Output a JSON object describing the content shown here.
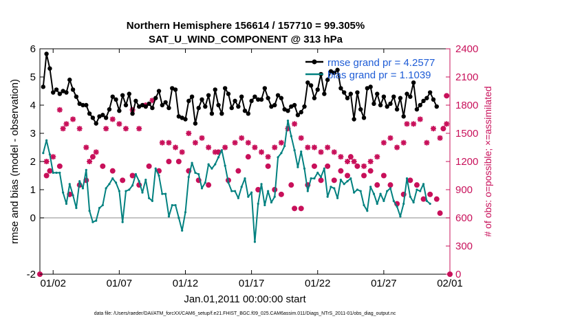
{
  "chart_data": {
    "type": "line",
    "title": "Northern Hemisphere 156614 / 157710 = 99.305%",
    "subtitle": "SAT_U_WIND_COMPONENT @ 313 hPa",
    "xlabel": "Jan.01,2011 00:00:00 start",
    "ylabel": "rmse and bias (model - observation)",
    "ylabel_right": "# of obs: o=possible; ×=assimilated",
    "footer": "data file: /Users/raeder/DAI/ATM_forcXX/CAM6_setup/f.e21.FHIST_BGC.f09_025.CAM6assim.011/Diags_NTrS_2011-01/obs_diag_output.nc",
    "x_ticks": [
      {
        "value": 1.5,
        "label": "01/02"
      },
      {
        "value": 6.5,
        "label": "01/07"
      },
      {
        "value": 11.5,
        "label": "01/12"
      },
      {
        "value": 16.5,
        "label": "01/17"
      },
      {
        "value": 21.5,
        "label": "01/22"
      },
      {
        "value": 26.5,
        "label": "01/27"
      },
      {
        "value": 31.5,
        "label": "02/01"
      }
    ],
    "xlim": [
      0.5,
      31.5
    ],
    "ylim": [
      -2,
      6
    ],
    "yticks": [
      "-2",
      "0",
      "1",
      "2",
      "3",
      "4",
      "5",
      "6"
    ],
    "ylim_right": [
      0,
      2400
    ],
    "yticks_right": [
      "0",
      "300",
      "600",
      "900",
      "1200",
      "1500",
      "1800",
      "2100",
      "2400"
    ],
    "legend": [
      {
        "name": "rmse grand pr = 4.2577",
        "color": "#000000"
      },
      {
        "name": "bias grand pr = 1.1039",
        "color": "#00807f"
      }
    ],
    "series": [
      {
        "name": "rmse",
        "axis": "left",
        "color": "#000000",
        "x_start": 0.75,
        "x_step": 0.25,
        "values": [
          4.65,
          5.82,
          5.3,
          4.45,
          4.55,
          4.4,
          4.5,
          4.45,
          4.9,
          4.55,
          4.3,
          4.05,
          4.0,
          4.0,
          3.7,
          3.55,
          3.35,
          3.6,
          3.65,
          3.55,
          3.85,
          4.3,
          4.2,
          3.8,
          4.35,
          4.0,
          4.4,
          3.7,
          4.15,
          3.95,
          4.0,
          3.95,
          4.05,
          3.9,
          4.25,
          4.5,
          4.0,
          4.1,
          3.9,
          4.6,
          4.55,
          3.6,
          3.55,
          3.5,
          4.15,
          4.3,
          3.35,
          3.9,
          4.2,
          3.95,
          4.35,
          3.7,
          4.55,
          4.0,
          3.7,
          4.6,
          4.4,
          3.9,
          4.15,
          3.95,
          4.3,
          3.8,
          3.7,
          4.15,
          4.3,
          4.2,
          4.2,
          4.6,
          4.25,
          3.95,
          4.0,
          4.35,
          4.25,
          3.85,
          3.8,
          3.95,
          4.0,
          3.65,
          3.75,
          3.95,
          4.8,
          4.7,
          4.25,
          4.55,
          5.1,
          4.4,
          4.9,
          5.2,
          5.15,
          5.25,
          4.6,
          4.45,
          4.25,
          4.4,
          3.5,
          4.45,
          3.85,
          3.55,
          4.6,
          4.65,
          4.05,
          4.4,
          4.0,
          4.3,
          3.95,
          4.05,
          4.3,
          3.85,
          4.25,
          3.6,
          4.4,
          4.3,
          4.8,
          3.85,
          4.0,
          4.15,
          4.25,
          4.45,
          4.2,
          3.95
        ]
      },
      {
        "name": "bias",
        "axis": "left",
        "color": "#00807f",
        "x_start": 0.75,
        "x_step": 0.25,
        "values": [
          2.3,
          2.75,
          2.25,
          1.6,
          1.6,
          1.6,
          0.9,
          0.5,
          1.2,
          0.8,
          0.35,
          1.3,
          1.05,
          1.7,
          0.25,
          -0.15,
          -0.1,
          0.35,
          0.45,
          1.05,
          1.2,
          1.4,
          1.25,
          0.95,
          -0.15,
          0.95,
          1.0,
          1.15,
          1.55,
          1.3,
          0.9,
          1.35,
          0.7,
          0.6,
          1.75,
          1.5,
          0.85,
          0.85,
          0.05,
          0.45,
          0.45,
          0.0,
          -0.45,
          0.2,
          1.45,
          1.95,
          1.6,
          1.55,
          1.05,
          1.25,
          1.9,
          1.75,
          1.9,
          2.15,
          2.4,
          1.85,
          1.25,
          0.95,
          0.95,
          0.7,
          1.1,
          1.4,
          0.75,
          0.9,
          -0.85,
          0.5,
          1.2,
          0.45,
          0.95,
          0.55,
          0.75,
          2.15,
          2.3,
          2.55,
          3.45,
          2.9,
          2.4,
          1.8,
          2.35,
          1.75,
          0.95,
          1.4,
          1.4,
          1.6,
          1.45,
          1.75,
          0.75,
          1.1,
          1.05,
          0.7,
          1.35,
          1.2,
          1.3,
          1.4,
          0.9,
          1.0,
          0.95,
          0.45,
          0.25,
          1.1,
          0.85,
          0.5,
          0.85,
          0.6,
          0.95,
          1.05,
          0.6,
          0.4,
          0.05,
          0.5,
          1.4,
          0.75,
          0.55,
          1.0,
          0.95,
          1.2,
          0.6,
          0.5
        ]
      },
      {
        "name": "obs possible",
        "axis": "right",
        "color": "#c8105a",
        "marker": "o",
        "values": [
          [
            0.5,
            0
          ],
          [
            1.0,
            1050
          ],
          [
            1.25,
            1100
          ],
          [
            2.0,
            1150
          ],
          [
            2.75,
            850
          ],
          [
            3.5,
            950
          ],
          [
            4.0,
            1000
          ],
          [
            4.5,
            1250
          ],
          [
            5.25,
            1150
          ],
          [
            6.0,
            1100
          ],
          [
            6.75,
            1000
          ],
          [
            7.5,
            1050
          ],
          [
            8.0,
            950
          ],
          [
            8.75,
            1150
          ],
          [
            9.5,
            1100
          ],
          [
            10.25,
            1200
          ],
          [
            11.0,
            1200
          ],
          [
            11.75,
            1100
          ],
          [
            12.5,
            1000
          ],
          [
            13.25,
            950
          ],
          [
            14.0,
            1300
          ],
          [
            14.75,
            1000
          ],
          [
            15.5,
            1100
          ],
          [
            16.25,
            1250
          ],
          [
            17.0,
            900
          ],
          [
            17.75,
            1150
          ],
          [
            18.25,
            900
          ],
          [
            18.75,
            850
          ],
          [
            19.5,
            950
          ],
          [
            19.75,
            700
          ],
          [
            20.25,
            700
          ],
          [
            20.75,
            950
          ],
          [
            21.25,
            1150
          ],
          [
            21.75,
            1000
          ],
          [
            22.25,
            1150
          ],
          [
            22.75,
            1000
          ],
          [
            23.25,
            1100
          ],
          [
            23.75,
            1050
          ],
          [
            24.0,
            1250
          ],
          [
            24.5,
            1150
          ],
          [
            25.0,
            1050
          ],
          [
            25.5,
            1100
          ],
          [
            26.0,
            950
          ],
          [
            26.5,
            1050
          ],
          [
            27.0,
            950
          ],
          [
            27.5,
            750
          ],
          [
            28.0,
            850
          ],
          [
            28.5,
            1000
          ],
          [
            29.0,
            950
          ],
          [
            29.5,
            800
          ],
          [
            30.0,
            850
          ],
          [
            30.5,
            800
          ],
          [
            30.75,
            650
          ],
          [
            31.0,
            1550
          ],
          [
            31.25,
            1900
          ],
          [
            31.5,
            0
          ]
        ]
      },
      {
        "name": "obs assimilated",
        "axis": "right",
        "color": "#c8105a",
        "marker": "x",
        "values": [
          [
            1.0,
            1200
          ],
          [
            1.5,
            1250
          ],
          [
            2.0,
            1750
          ],
          [
            2.25,
            1550
          ],
          [
            2.5,
            1600
          ],
          [
            3.0,
            1650
          ],
          [
            3.5,
            1550
          ],
          [
            4.0,
            1350
          ],
          [
            4.25,
            1200
          ],
          [
            4.75,
            1300
          ],
          [
            5.5,
            1550
          ],
          [
            6.0,
            1650
          ],
          [
            6.5,
            1600
          ],
          [
            7.0,
            1550
          ],
          [
            7.5,
            1750
          ],
          [
            8.0,
            1550
          ],
          [
            8.5,
            1800
          ],
          [
            9.0,
            1850
          ],
          [
            9.75,
            1400
          ],
          [
            10.25,
            1400
          ],
          [
            10.75,
            1350
          ],
          [
            11.25,
            1300
          ],
          [
            11.75,
            1500
          ],
          [
            12.25,
            1400
          ],
          [
            12.75,
            1450
          ],
          [
            13.25,
            1350
          ],
          [
            13.75,
            1300
          ],
          [
            14.5,
            1350
          ],
          [
            15.25,
            1400
          ],
          [
            15.75,
            1450
          ],
          [
            16.25,
            1400
          ],
          [
            16.75,
            1350
          ],
          [
            17.25,
            1300
          ],
          [
            17.75,
            1250
          ],
          [
            18.25,
            1350
          ],
          [
            18.75,
            1400
          ],
          [
            19.25,
            1550
          ],
          [
            19.75,
            1600
          ],
          [
            20.25,
            1450
          ],
          [
            20.75,
            1350
          ],
          [
            21.25,
            1350
          ],
          [
            21.75,
            1300
          ],
          [
            22.25,
            1350
          ],
          [
            22.75,
            1300
          ],
          [
            23.25,
            1250
          ],
          [
            23.75,
            1200
          ],
          [
            24.25,
            1200
          ],
          [
            25.0,
            1150
          ],
          [
            25.5,
            1200
          ],
          [
            26.0,
            1250
          ],
          [
            26.5,
            1400
          ],
          [
            27.0,
            1450
          ],
          [
            27.5,
            1350
          ],
          [
            28.0,
            1400
          ],
          [
            28.25,
            1600
          ],
          [
            28.75,
            1600
          ],
          [
            29.25,
            1650
          ],
          [
            29.75,
            1400
          ],
          [
            30.25,
            1550
          ],
          [
            30.75,
            1450
          ],
          [
            31.25,
            1600
          ]
        ]
      }
    ]
  }
}
